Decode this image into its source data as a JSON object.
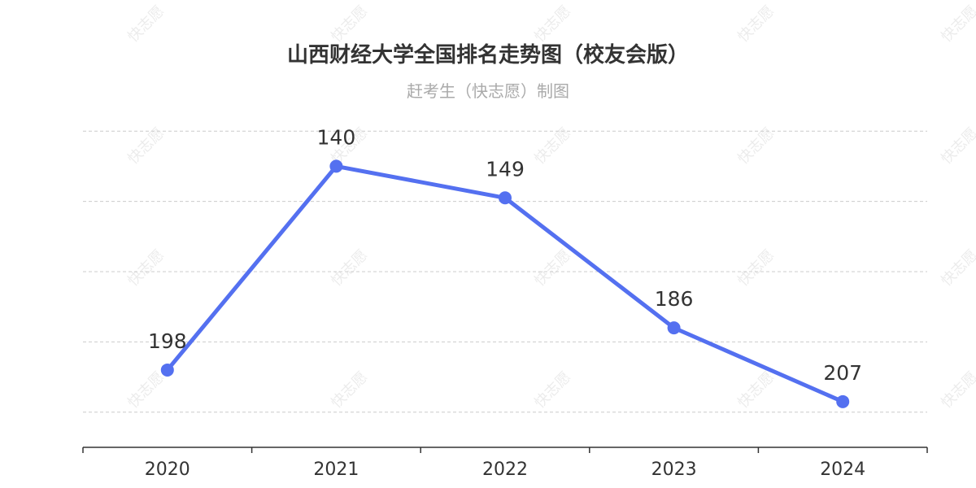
{
  "header": {
    "title": "山西财经大学全国排名走势图（校友会版）",
    "subtitle": "赶考生（快志愿）制图"
  },
  "watermark": {
    "text": "快志愿"
  },
  "chart_data": {
    "type": "line",
    "title": "山西财经大学全国排名走势图（校友会版）",
    "subtitle": "赶考生（快志愿）制图",
    "categories": [
      "2020",
      "2021",
      "2022",
      "2023",
      "2024"
    ],
    "series": [
      {
        "values": [
          198,
          140,
          149,
          186,
          207
        ],
        "color": "#5470f0"
      }
    ],
    "y_inverse": true,
    "ylim": [
      120,
      220
    ],
    "y_axis_labels": false,
    "grid": true,
    "data_labels": true,
    "legend": "none",
    "line_color": "#5470f0",
    "grid_color": "#cccccc",
    "axis_color": "#333333"
  }
}
